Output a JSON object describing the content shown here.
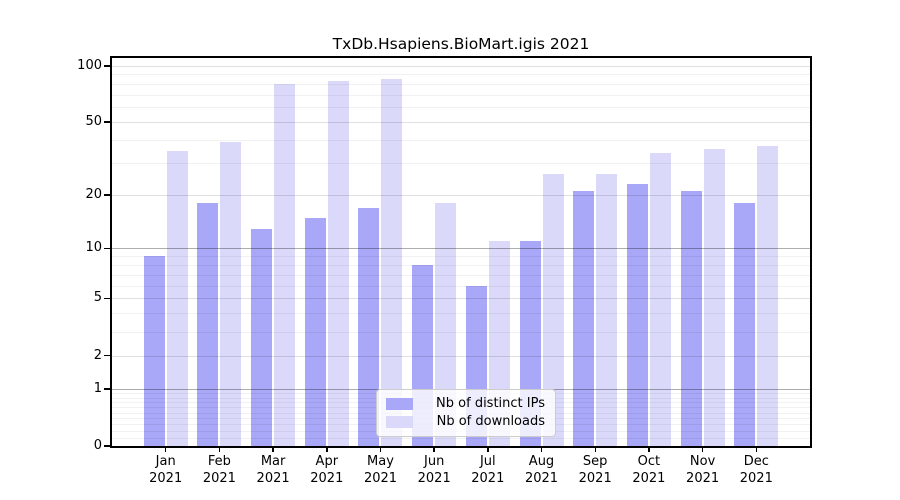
{
  "chart_data": {
    "type": "bar",
    "title": "TxDb.Hsapiens.BioMart.igis 2021",
    "categories": [
      "Jan",
      "Feb",
      "Mar",
      "Apr",
      "May",
      "Jun",
      "Jul",
      "Aug",
      "Sep",
      "Oct",
      "Nov",
      "Dec"
    ],
    "x_year_label": "2021",
    "series": [
      {
        "key": "distinct-ips",
        "name": "Nb of distinct IPs",
        "color": "#a9a7f8",
        "values": [
          9,
          18,
          13,
          15,
          17,
          8,
          6,
          11,
          21,
          23,
          21,
          18
        ]
      },
      {
        "key": "downloads",
        "name": "Nb of downloads",
        "color": "#dad9fa",
        "values": [
          35,
          39,
          80,
          83,
          85,
          18,
          11,
          26,
          26,
          34,
          36,
          37
        ]
      }
    ],
    "yscale": "log1p",
    "ylim": [
      0,
      110
    ],
    "yticks": [
      0,
      1,
      2,
      5,
      10,
      20,
      50,
      100
    ],
    "grid": {
      "decade": [
        1,
        10
      ],
      "major": [
        2,
        5,
        20,
        50,
        100
      ],
      "minor": [
        0.1,
        0.2,
        0.3,
        0.4,
        0.5,
        0.6,
        0.7,
        0.8,
        0.9,
        3,
        4,
        6,
        7,
        8,
        9,
        30,
        40,
        60,
        70,
        80,
        90
      ]
    },
    "legend_position": "lower center",
    "grid_on": true
  }
}
